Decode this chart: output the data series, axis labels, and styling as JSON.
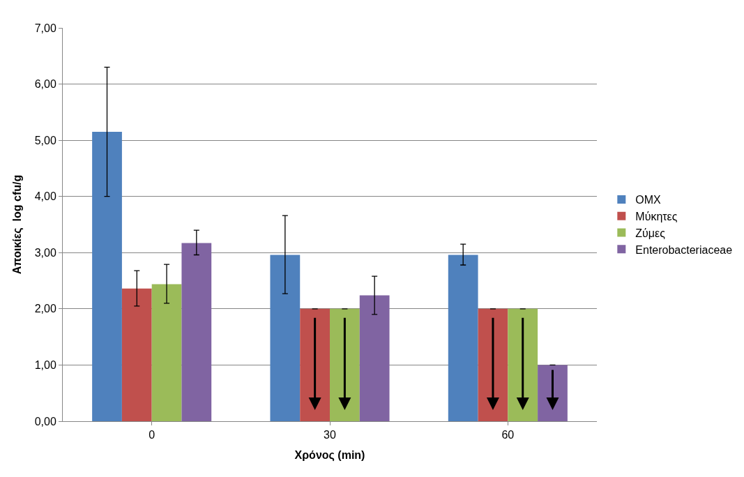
{
  "chart_data": {
    "type": "bar",
    "xlabel": "Χρόνος (min)",
    "ylabel": "Αποικίες  log cfu/g",
    "categories": [
      "0",
      "30",
      "60"
    ],
    "series": [
      {
        "name": "ΟΜΧ",
        "color": "#4f81bd",
        "values": [
          5.15,
          2.96,
          2.96
        ],
        "errors": [
          [
            4.0,
            6.3
          ],
          [
            2.27,
            3.66
          ],
          [
            2.78,
            3.15
          ]
        ]
      },
      {
        "name": "Μύκητες",
        "color": "#c0504d",
        "values": [
          2.36,
          2.0,
          2.0
        ],
        "errors": [
          [
            2.05,
            2.68
          ],
          null,
          null
        ]
      },
      {
        "name": "Ζύμες",
        "color": "#9bbb59",
        "values": [
          2.44,
          2.0,
          2.0
        ],
        "errors": [
          [
            2.1,
            2.79
          ],
          null,
          null
        ]
      },
      {
        "name": "Enterobacteriaceae",
        "color": "#8064a2",
        "values": [
          3.17,
          2.24,
          1.0
        ],
        "errors": [
          [
            2.96,
            3.4
          ],
          [
            1.9,
            2.58
          ],
          null
        ]
      }
    ],
    "ylim": [
      0,
      7
    ],
    "yticks": [
      {
        "value": 0,
        "label": "0,00"
      },
      {
        "value": 1,
        "label": "1,00"
      },
      {
        "value": 2,
        "label": "2,00"
      },
      {
        "value": 3,
        "label": "3,00"
      },
      {
        "value": 4,
        "label": "4,00"
      },
      {
        "value": 5,
        "label": "5,00"
      },
      {
        "value": 6,
        "label": "6,00"
      },
      {
        "value": 7,
        "label": "7,00"
      }
    ],
    "grid": "y",
    "legend": "right"
  }
}
